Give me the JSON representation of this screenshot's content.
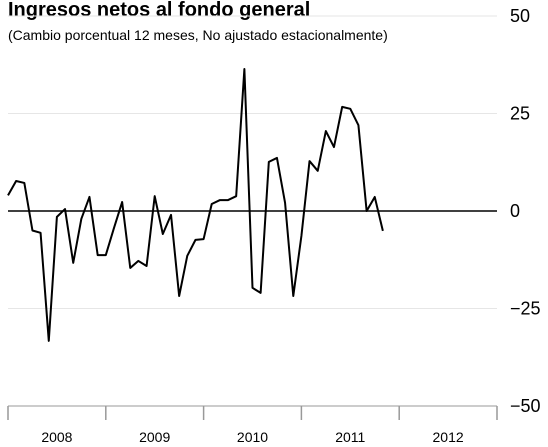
{
  "chart_data": {
    "type": "line",
    "title": "Ingresos netos al fondo general",
    "subtitle": "(Cambio porcentual 12 meses, No ajustado estacionalmente)",
    "x": [
      2008.0,
      2008.083,
      2008.167,
      2008.25,
      2008.333,
      2008.417,
      2008.5,
      2008.583,
      2008.667,
      2008.75,
      2008.833,
      2008.917,
      2009.0,
      2009.083,
      2009.167,
      2009.25,
      2009.333,
      2009.417,
      2009.5,
      2009.583,
      2009.667,
      2009.75,
      2009.833,
      2009.917,
      2010.0,
      2010.083,
      2010.167,
      2010.25,
      2010.333,
      2010.417,
      2010.5,
      2010.583,
      2010.667,
      2010.75,
      2010.833,
      2010.917,
      2011.0,
      2011.083,
      2011.167,
      2011.25,
      2011.333,
      2011.417,
      2011.5,
      2011.583,
      2011.667,
      2011.75,
      2011.833
    ],
    "series": [
      {
        "color": "#000000",
        "values": [
          4,
          7.7,
          7.2,
          -5,
          -5.6,
          -33.3,
          -1.5,
          0.5,
          -13.3,
          -2,
          3.6,
          -11.3,
          -11.3,
          -4.4,
          2.3,
          -14.6,
          -12.8,
          -14.1,
          3.8,
          -5.9,
          -1,
          -21.8,
          -11.5,
          -7.4,
          -7.2,
          1.8,
          2.8,
          2.8,
          3.8,
          36.4,
          -19.7,
          -21,
          12.6,
          13.6,
          2.1,
          -21.8,
          -6.4,
          12.8,
          10.3,
          20.5,
          16.4,
          26.7,
          26.2,
          22,
          0,
          3.6,
          -5.1
        ]
      }
    ],
    "xlim": [
      2008,
      2013
    ],
    "xticks": [
      2008,
      2009,
      2010,
      2011,
      2012,
      2013
    ],
    "ylim": [
      -50,
      50
    ],
    "yticks": [
      {
        "value": -50,
        "label": "−50"
      },
      {
        "value": -25,
        "label": "−25"
      },
      0,
      25,
      50
    ],
    "grid": true
  }
}
